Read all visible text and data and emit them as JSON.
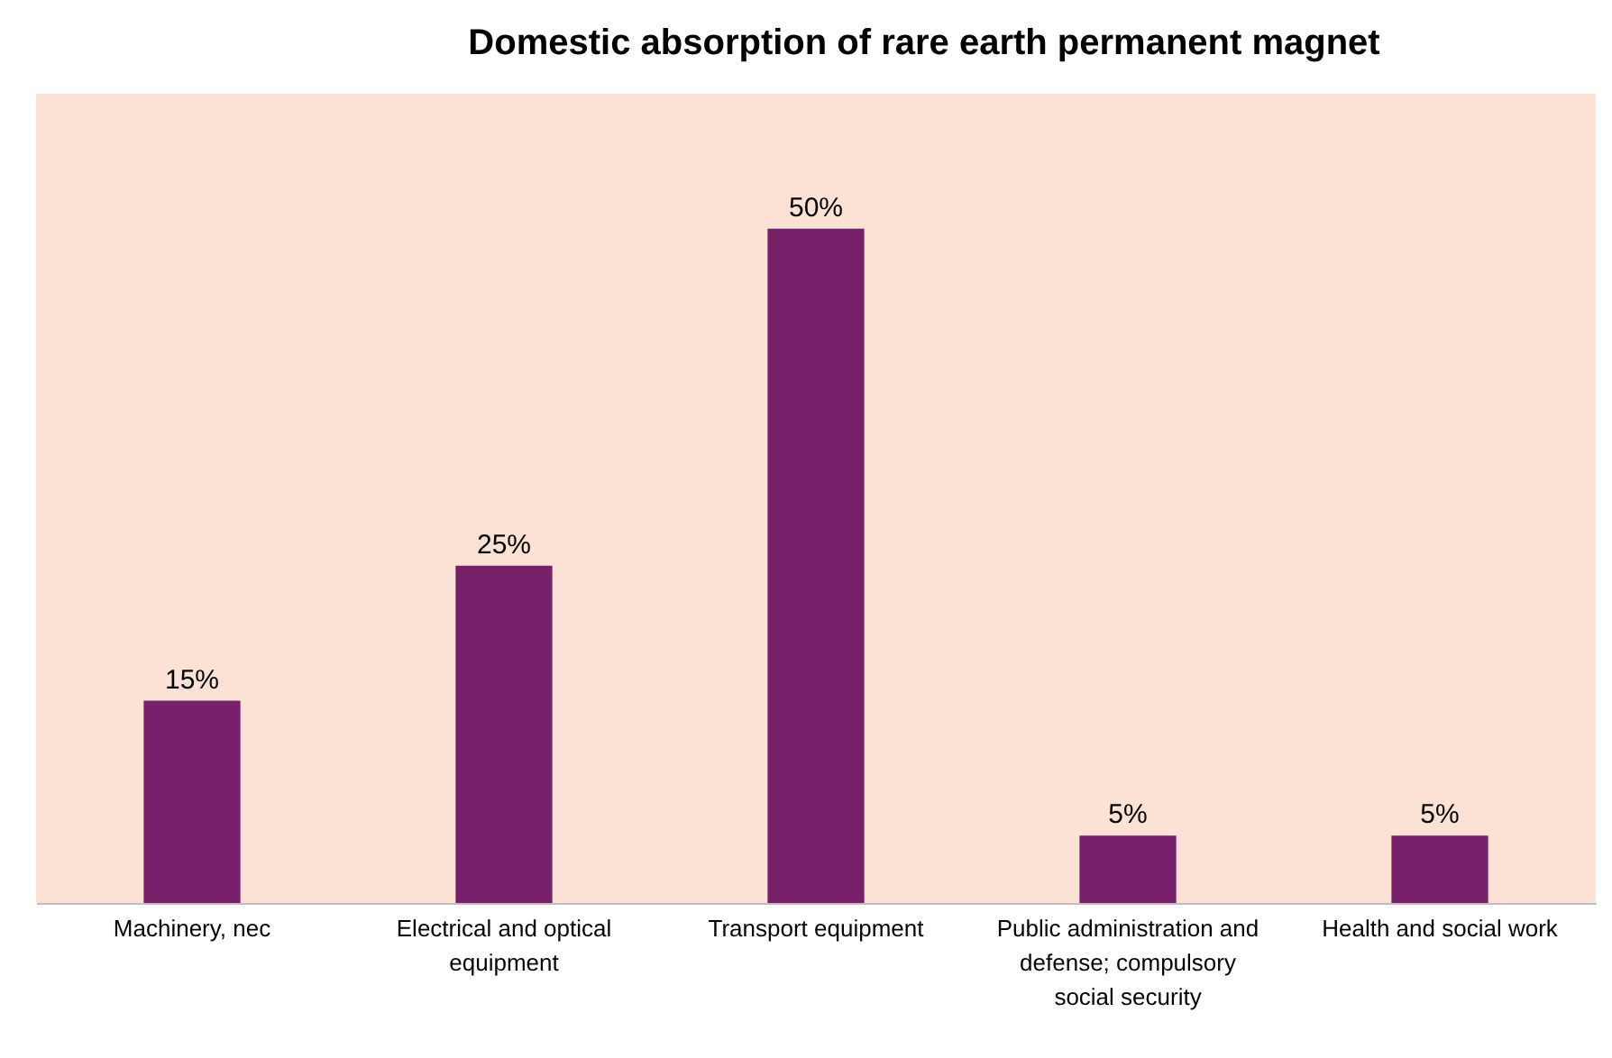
{
  "chart_data": {
    "type": "bar",
    "title": "Domestic absorption of rare earth permanent magnet",
    "categories": [
      "Machinery, nec",
      "Electrical and optical equipment",
      "Transport equipment",
      "Public administration and defense; compulsory social security",
      "Health and social work"
    ],
    "values": [
      15,
      25,
      50,
      5,
      5
    ],
    "value_labels": [
      "15%",
      "25%",
      "50%",
      "5%",
      "5%"
    ],
    "color": "#771f68",
    "ylim": [
      0,
      60
    ],
    "tick_labels": "x"
  }
}
